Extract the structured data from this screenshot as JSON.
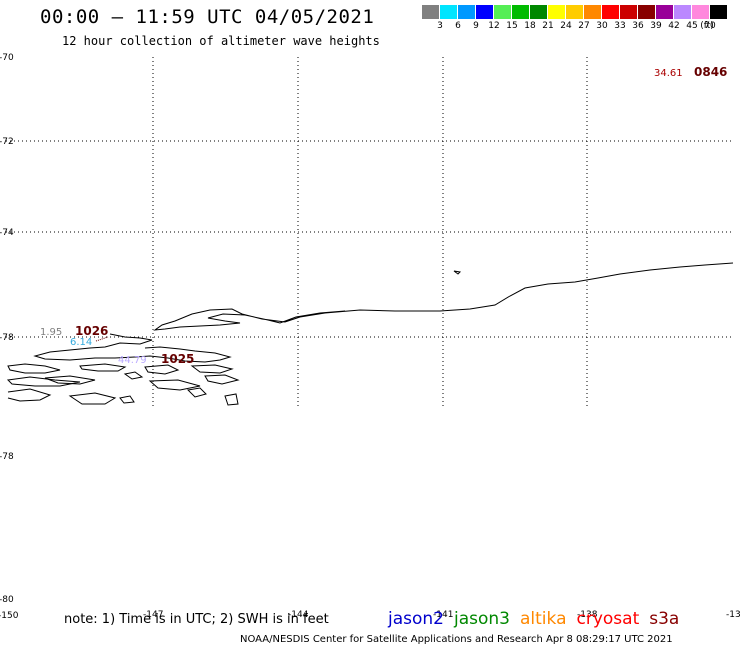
{
  "header": {
    "title": "00:00 – 11:59 UTC 04/05/2021",
    "subtitle": "12 hour collection of altimeter wave heights"
  },
  "color_scale": {
    "unit": "(ft)",
    "bins": [
      {
        "label": "3",
        "color": "#808080"
      },
      {
        "label": "6",
        "color": "#00e5ff"
      },
      {
        "label": "9",
        "color": "#0099ff"
      },
      {
        "label": "12",
        "color": "#0000ff"
      },
      {
        "label": "15",
        "color": "#55ee55"
      },
      {
        "label": "18",
        "color": "#00bb00"
      },
      {
        "label": "21",
        "color": "#008800"
      },
      {
        "label": "24",
        "color": "#ffff00"
      },
      {
        "label": "27",
        "color": "#ffcc00"
      },
      {
        "label": "30",
        "color": "#ff8800"
      },
      {
        "label": "33",
        "color": "#ff0000"
      },
      {
        "label": "36",
        "color": "#cc0000"
      },
      {
        "label": "39",
        "color": "#880000"
      },
      {
        "label": "42",
        "color": "#990099"
      },
      {
        "label": "45",
        "color": "#bb88ff"
      },
      {
        "label": "70",
        "color": "#ff88dd"
      },
      {
        "label": "",
        "color": "#000000"
      }
    ]
  },
  "axes": {
    "lat_ticks": [
      "-70",
      "-72",
      "-74",
      "-78",
      "-78",
      "-80"
    ],
    "lon_ticks": [
      "-150",
      "-147",
      "-144",
      "-141",
      "-138",
      "-13"
    ]
  },
  "observations": [
    {
      "value": "34.61",
      "color": "#aa0000",
      "pass": "0846",
      "pass_color": "#660000"
    },
    {
      "value": "1.95",
      "color": "#808080",
      "pass": "1026",
      "pass_color": "#660000"
    },
    {
      "value": "6.14",
      "color": "#33aadd",
      "pass": "",
      "pass_color": "#660000"
    },
    {
      "value": "44.79",
      "color": "#bbaaff",
      "pass": "1025",
      "pass_color": "#660000"
    }
  ],
  "footer": {
    "note": "note: 1) Time is in UTC; 2) SWH is in feet",
    "satellites": [
      {
        "name": "jason2",
        "color": "#0000cc"
      },
      {
        "name": "jason3",
        "color": "#008800"
      },
      {
        "name": "altika",
        "color": "#ff8800"
      },
      {
        "name": "cryosat",
        "color": "#ff0000"
      },
      {
        "name": "s3a",
        "color": "#880000"
      }
    ],
    "credit": "NOAA/NESDIS Center for Satellite Applications and Research   Apr  8 08:29:17 UTC 2021"
  }
}
